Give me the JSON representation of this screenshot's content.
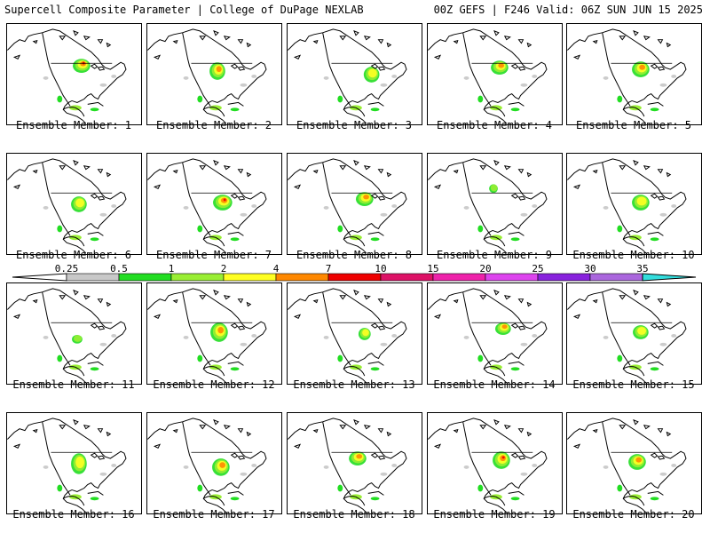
{
  "header": {
    "left": "Supercell Composite Parameter | College of DuPage NEXLAB",
    "right": "00Z GEFS | F246 Valid: 06Z SUN JUN 15 2025"
  },
  "members": [
    {
      "label": "Ensemble Member: 1"
    },
    {
      "label": "Ensemble Member: 2"
    },
    {
      "label": "Ensemble Member: 3"
    },
    {
      "label": "Ensemble Member: 4"
    },
    {
      "label": "Ensemble Member: 5"
    },
    {
      "label": "Ensemble Member: 6"
    },
    {
      "label": "Ensemble Member: 7"
    },
    {
      "label": "Ensemble Member: 8"
    },
    {
      "label": "Ensemble Member: 9"
    },
    {
      "label": "Ensemble Member: 10"
    },
    {
      "label": "Ensemble Member: 11"
    },
    {
      "label": "Ensemble Member: 12"
    },
    {
      "label": "Ensemble Member: 13"
    },
    {
      "label": "Ensemble Member: 14"
    },
    {
      "label": "Ensemble Member: 15"
    },
    {
      "label": "Ensemble Member: 16"
    },
    {
      "label": "Ensemble Member: 17"
    },
    {
      "label": "Ensemble Member: 18"
    },
    {
      "label": "Ensemble Member: 19"
    },
    {
      "label": "Ensemble Member: 20"
    }
  ],
  "colorbar": {
    "ticks": [
      "0.25",
      "0.5",
      "1",
      "2",
      "4",
      "7",
      "10",
      "15",
      "20",
      "25",
      "30",
      "35"
    ],
    "colors": [
      "#c8c8c8",
      "#22dd22",
      "#99ee33",
      "#ffff22",
      "#ff8800",
      "#ee0000",
      "#dd1166",
      "#ee22aa",
      "#dd44ee",
      "#8822dd",
      "#aa66dd",
      "#33dddd"
    ]
  }
}
